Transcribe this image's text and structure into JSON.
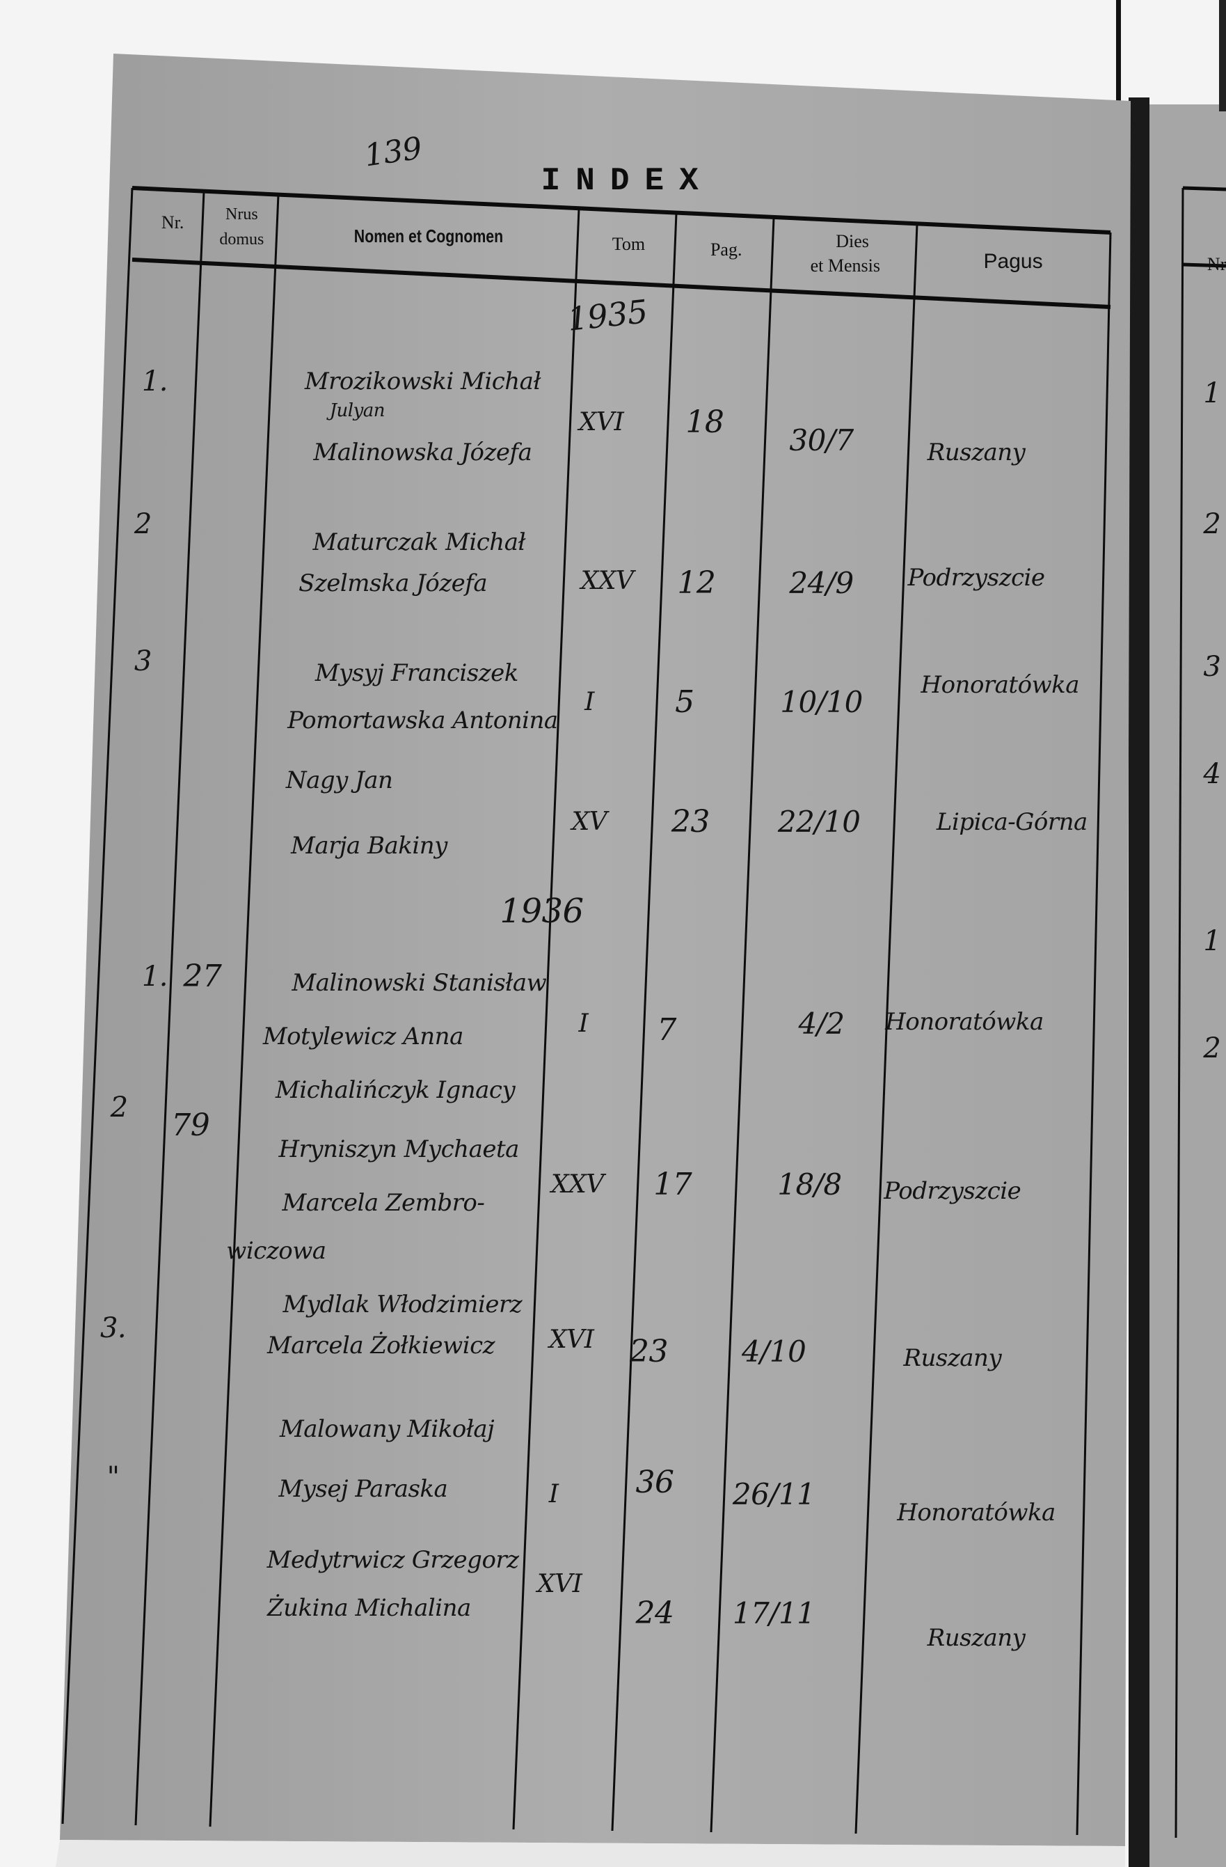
{
  "page_number_note": "139",
  "title": "INDEX",
  "headers": {
    "nr": "Nr.",
    "nrus_1": "Nrus",
    "nrus_2": "domus",
    "nomen": "Nomen et Cognomen",
    "tom": "Tom",
    "pag": "Pag.",
    "dies_1": "Dies",
    "dies_2": "et Mensis",
    "pagus": "Pagus"
  },
  "years": [
    "1935",
    "1936"
  ],
  "entries_1935": [
    {
      "nr": "1.",
      "nrus": "",
      "names": [
        "Mrozikowski Michał",
        "Julyan",
        "Malinowska Józefa"
      ],
      "tom": "XVI",
      "pag": "18",
      "dies": "30/7",
      "pagus": "Ruszany"
    },
    {
      "nr": "2",
      "nrus": "",
      "names": [
        "Maturczak Michał",
        "Szelmska Józefa"
      ],
      "tom": "XXV",
      "pag": "12",
      "dies": "24/9",
      "pagus": "Podrzyszcie"
    },
    {
      "nr": "3",
      "nrus": "",
      "names": [
        "Mysyj Franciszek",
        "Pomortawska Antonina"
      ],
      "tom": "I",
      "pag": "5",
      "dies": "10/10",
      "pagus": "Honoratówka"
    },
    {
      "nr": "",
      "nrus": "",
      "names": [
        "Nagy Jan",
        "Marja Bakiny"
      ],
      "tom": "XV",
      "pag": "23",
      "dies": "22/10",
      "pagus": "Lipica-Górna"
    }
  ],
  "entries_1936": [
    {
      "nr": "1.",
      "nrus": "27",
      "names": [
        "Malinowski Stanisław",
        "Motylewicz Anna"
      ],
      "tom": "I",
      "pag": "7",
      "dies": "4/2",
      "pagus": "Honoratówka"
    },
    {
      "nr": "2",
      "nrus": "79",
      "names": [
        "Michalińczyk Ignacy",
        "Hryniszyn Mychaeta",
        "Marcela Zembro-",
        "wiczowa"
      ],
      "tom": "XXV",
      "pag": "17",
      "dies": "18/8",
      "pagus": "Podrzyszcie"
    },
    {
      "nr": "3.",
      "nrus": "",
      "names": [
        "Mydlak Włodzimierz",
        "Marcela Żołkiewicz"
      ],
      "tom": "XVI",
      "pag": "23",
      "dies": "4/10",
      "pagus": "Ruszany"
    },
    {
      "nr": "\"",
      "nrus": "",
      "names": [
        "Malowany Mikołaj",
        "Mysej Paraska"
      ],
      "tom": "I",
      "pag": "36",
      "dies": "26/11",
      "pagus": "Honoratówka"
    },
    {
      "nr": "",
      "nrus": "",
      "names": [
        "Medytrwicz Grzegorz",
        "Żukina Michalina"
      ],
      "tom": "XVI",
      "pag": "24",
      "dies": "17/11",
      "pagus": "Ruszany"
    }
  ],
  "next_page": {
    "header": "Nr",
    "numbers": [
      "1",
      "2",
      "3",
      "4",
      "1",
      "2"
    ]
  },
  "colors": {
    "paper": "#a9a9a9",
    "ink": "#141414",
    "background": "#f4f4f4"
  }
}
